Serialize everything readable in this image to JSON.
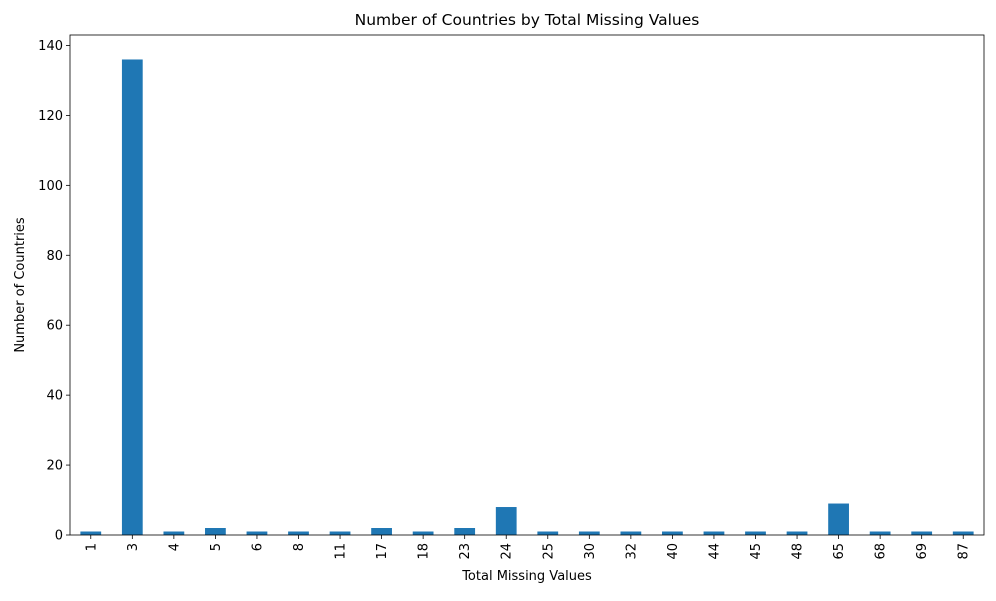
{
  "chart_data": {
    "type": "bar",
    "title": "Number of Countries by Total Missing Values",
    "xlabel": "Total Missing Values",
    "ylabel": "Number of Countries",
    "categories": [
      "1",
      "3",
      "4",
      "5",
      "6",
      "8",
      "11",
      "17",
      "18",
      "23",
      "24",
      "25",
      "30",
      "32",
      "40",
      "44",
      "45",
      "48",
      "65",
      "68",
      "69",
      "87"
    ],
    "values": [
      1,
      136,
      1,
      2,
      1,
      1,
      1,
      2,
      1,
      2,
      8,
      1,
      1,
      1,
      1,
      1,
      1,
      1,
      9,
      1,
      1,
      1
    ],
    "ylim": [
      0,
      143
    ],
    "yticks": [
      0,
      20,
      40,
      60,
      80,
      100,
      120,
      140
    ],
    "bar_color": "#1f77b4",
    "grid": false,
    "legend": "none",
    "x_tick_rotation": "vertical"
  }
}
